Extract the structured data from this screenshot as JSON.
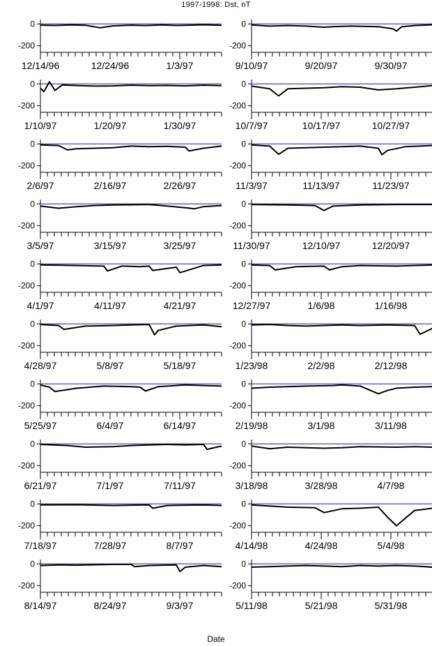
{
  "figure": {
    "title": "1997-1998: Dst, nT",
    "xlabel": "Date",
    "series_color": "#000000",
    "zero_line_color": "#1a1a8c"
  },
  "chart_data": [
    {
      "type": "line",
      "ylabel": "",
      "yticks": [
        0,
        -200
      ],
      "ylim": [
        -260,
        40
      ],
      "date_labels": [
        "12/14/96",
        "12/24/96",
        "1/3/97"
      ],
      "x": [
        0,
        0.08,
        0.17,
        0.25,
        0.33,
        0.4,
        0.5,
        0.58,
        0.67,
        0.75,
        0.82,
        0.9,
        1
      ],
      "y": [
        -12,
        -14,
        -10,
        -13,
        -35,
        -18,
        -12,
        -15,
        -10,
        -14,
        -12,
        -8,
        -13
      ]
    },
    {
      "type": "line",
      "ylabel": "",
      "yticks": [
        0,
        -200
      ],
      "ylim": [
        -260,
        40
      ],
      "date_labels": [
        "1/10/97",
        "1/20/97",
        "1/30/97"
      ],
      "x": [
        0,
        0.02,
        0.05,
        0.08,
        0.12,
        0.2,
        0.3,
        0.4,
        0.5,
        0.6,
        0.7,
        0.8,
        0.9,
        1
      ],
      "y": [
        -40,
        -70,
        20,
        -60,
        -10,
        -15,
        -20,
        -18,
        -12,
        -16,
        -14,
        -18,
        -12,
        -16
      ]
    },
    {
      "type": "line",
      "ylabel": "",
      "yticks": [
        0,
        -200
      ],
      "ylim": [
        -260,
        40
      ],
      "date_labels": [
        "2/6/97",
        "2/16/97",
        "2/26/97"
      ],
      "x": [
        0,
        0.1,
        0.15,
        0.2,
        0.3,
        0.4,
        0.5,
        0.6,
        0.7,
        0.8,
        0.82,
        0.9,
        1
      ],
      "y": [
        -10,
        -15,
        -55,
        -45,
        -40,
        -35,
        -20,
        -25,
        -22,
        -30,
        -65,
        -40,
        -20
      ]
    },
    {
      "type": "line",
      "ylabel": "",
      "yticks": [
        0,
        -200
      ],
      "ylim": [
        -260,
        40
      ],
      "date_labels": [
        "3/5/97",
        "3/15/97",
        "3/25/97"
      ],
      "x": [
        0,
        0.1,
        0.2,
        0.3,
        0.4,
        0.5,
        0.6,
        0.7,
        0.8,
        0.85,
        0.9,
        1
      ],
      "y": [
        -20,
        -40,
        -25,
        -15,
        -10,
        -8,
        -5,
        -20,
        -35,
        -45,
        -25,
        -15
      ]
    },
    {
      "type": "line",
      "ylabel": "",
      "yticks": [
        0,
        -200
      ],
      "ylim": [
        -260,
        40
      ],
      "date_labels": [
        "4/1/97",
        "4/11/97",
        "4/21/97"
      ],
      "x": [
        0,
        0.1,
        0.2,
        0.35,
        0.37,
        0.45,
        0.55,
        0.6,
        0.62,
        0.75,
        0.77,
        0.9,
        1
      ],
      "y": [
        -10,
        -12,
        -15,
        -20,
        -65,
        -20,
        -25,
        -20,
        -60,
        -30,
        -80,
        -15,
        -10
      ]
    },
    {
      "type": "line",
      "ylabel": "",
      "yticks": [
        0,
        -200
      ],
      "ylim": [
        -260,
        40
      ],
      "date_labels": [
        "4/28/97",
        "5/8/97",
        "5/18/97"
      ],
      "x": [
        0,
        0.1,
        0.13,
        0.25,
        0.4,
        0.5,
        0.6,
        0.63,
        0.65,
        0.75,
        0.9,
        1
      ],
      "y": [
        -5,
        -15,
        -50,
        -20,
        -15,
        -10,
        -5,
        -100,
        -60,
        -20,
        -10,
        -25
      ]
    },
    {
      "type": "line",
      "ylabel": "",
      "yticks": [
        0,
        -200
      ],
      "ylim": [
        -260,
        40
      ],
      "date_labels": [
        "5/25/97",
        "6/4/97",
        "6/14/97"
      ],
      "x": [
        0,
        0.05,
        0.08,
        0.2,
        0.35,
        0.5,
        0.55,
        0.58,
        0.65,
        0.8,
        0.9,
        1
      ],
      "y": [
        -10,
        -30,
        -70,
        -40,
        -20,
        -25,
        -30,
        -65,
        -25,
        -10,
        -15,
        -20
      ]
    },
    {
      "type": "line",
      "ylabel": "",
      "yticks": [
        0,
        -200
      ],
      "ylim": [
        -260,
        40
      ],
      "date_labels": [
        "6/21/97",
        "7/1/97",
        "7/11/97"
      ],
      "x": [
        0,
        0.15,
        0.25,
        0.4,
        0.5,
        0.6,
        0.7,
        0.8,
        0.9,
        0.92,
        1
      ],
      "y": [
        -5,
        -15,
        -30,
        -25,
        -15,
        -10,
        -5,
        -10,
        -5,
        -50,
        -20
      ]
    },
    {
      "type": "line",
      "ylabel": "",
      "yticks": [
        0,
        -200
      ],
      "ylim": [
        -260,
        40
      ],
      "date_labels": [
        "7/18/97",
        "7/28/97",
        "8/7/97"
      ],
      "x": [
        0,
        0.2,
        0.4,
        0.5,
        0.6,
        0.62,
        0.7,
        0.8,
        0.9,
        1
      ],
      "y": [
        -10,
        -8,
        -15,
        -12,
        -10,
        -40,
        -15,
        -12,
        -10,
        -15
      ]
    },
    {
      "type": "line",
      "ylabel": "",
      "yticks": [
        0,
        -200
      ],
      "ylim": [
        -260,
        40
      ],
      "date_labels": [
        "8/14/97",
        "8/24/97",
        "9/3/97"
      ],
      "x": [
        0,
        0.1,
        0.2,
        0.3,
        0.4,
        0.5,
        0.52,
        0.6,
        0.75,
        0.77,
        0.8,
        0.9,
        1
      ],
      "y": [
        -15,
        -10,
        -12,
        -8,
        -5,
        -5,
        -25,
        -15,
        -10,
        -70,
        -30,
        -15,
        -25
      ]
    },
    {
      "type": "line",
      "ylabel": "",
      "yticks": [
        0,
        -200
      ],
      "ylim": [
        -260,
        40
      ],
      "date_labels": [
        "9/10/97",
        "9/20/97",
        "9/30/97"
      ],
      "x": [
        0,
        0.1,
        0.2,
        0.3,
        0.4,
        0.45,
        0.55,
        0.7,
        0.78,
        0.8,
        0.83,
        0.9,
        1
      ],
      "y": [
        -10,
        -20,
        -15,
        -20,
        -30,
        -25,
        -20,
        -25,
        -45,
        -65,
        -25,
        -15,
        -8
      ]
    },
    {
      "type": "line",
      "ylabel": "",
      "yticks": [
        0,
        -200
      ],
      "ylim": [
        -260,
        40
      ],
      "date_labels": [
        "10/7/97",
        "10/17/97",
        "10/27/97"
      ],
      "x": [
        0,
        0.1,
        0.15,
        0.2,
        0.3,
        0.4,
        0.5,
        0.6,
        0.7,
        0.8,
        0.9,
        1
      ],
      "y": [
        -20,
        -45,
        -110,
        -45,
        -40,
        -35,
        -25,
        -30,
        -55,
        -45,
        -30,
        -15
      ]
    },
    {
      "type": "line",
      "ylabel": "",
      "yticks": [
        0,
        -200
      ],
      "ylim": [
        -260,
        40
      ],
      "date_labels": [
        "11/3/97",
        "11/13/97",
        "11/23/97"
      ],
      "x": [
        0,
        0.1,
        0.15,
        0.2,
        0.3,
        0.4,
        0.5,
        0.6,
        0.7,
        0.72,
        0.75,
        0.85,
        1
      ],
      "y": [
        -10,
        -20,
        -95,
        -40,
        -35,
        -30,
        -25,
        -20,
        -40,
        -100,
        -60,
        -25,
        -15
      ]
    },
    {
      "type": "line",
      "ylabel": "",
      "yticks": [
        0,
        -200
      ],
      "ylim": [
        -260,
        40
      ],
      "date_labels": [
        "11/30/97",
        "12/10/97",
        "12/20/97"
      ],
      "x": [
        0,
        0.2,
        0.35,
        0.4,
        0.45,
        0.6,
        0.8,
        1
      ],
      "y": [
        -5,
        -10,
        -15,
        -60,
        -20,
        -10,
        -5,
        -5
      ]
    },
    {
      "type": "line",
      "ylabel": "",
      "yticks": [
        0,
        -200
      ],
      "ylim": [
        -260,
        40
      ],
      "date_labels": [
        "12/27/97",
        "1/6/98",
        "1/16/98"
      ],
      "x": [
        0,
        0.1,
        0.13,
        0.25,
        0.4,
        0.43,
        0.5,
        0.6,
        0.8,
        1
      ],
      "y": [
        -10,
        -15,
        -55,
        -25,
        -20,
        -55,
        -25,
        -15,
        -20,
        -10
      ]
    },
    {
      "type": "line",
      "ylabel": "",
      "yticks": [
        0,
        -200
      ],
      "ylim": [
        -260,
        40
      ],
      "date_labels": [
        "1/23/98",
        "2/2/98",
        "2/12/98"
      ],
      "x": [
        0,
        0.1,
        0.2,
        0.3,
        0.5,
        0.6,
        0.75,
        0.9,
        0.93,
        1
      ],
      "y": [
        -10,
        -5,
        -15,
        -20,
        -10,
        -15,
        -10,
        -15,
        -95,
        -40
      ]
    },
    {
      "type": "line",
      "ylabel": "",
      "yticks": [
        0,
        -200
      ],
      "ylim": [
        -260,
        40
      ],
      "date_labels": [
        "2/19/98",
        "3/1/98",
        "3/11/98"
      ],
      "x": [
        0,
        0.1,
        0.2,
        0.3,
        0.45,
        0.5,
        0.6,
        0.7,
        0.75,
        0.8,
        0.9,
        1
      ],
      "y": [
        -40,
        -30,
        -25,
        -20,
        -15,
        -10,
        -20,
        -90,
        -60,
        -40,
        -30,
        -25
      ]
    },
    {
      "type": "line",
      "ylabel": "",
      "yticks": [
        0,
        -200
      ],
      "ylim": [
        -260,
        40
      ],
      "date_labels": [
        "3/18/98",
        "3/28/98",
        "4/7/98"
      ],
      "x": [
        0,
        0.1,
        0.2,
        0.3,
        0.4,
        0.5,
        0.6,
        0.8,
        0.9,
        1
      ],
      "y": [
        -20,
        -45,
        -30,
        -35,
        -40,
        -35,
        -25,
        -30,
        -25,
        -30
      ]
    },
    {
      "type": "line",
      "ylabel": "",
      "yticks": [
        0,
        -200
      ],
      "ylim": [
        -260,
        40
      ],
      "date_labels": [
        "4/14/98",
        "4/24/98",
        "5/4/98"
      ],
      "x": [
        0,
        0.1,
        0.2,
        0.35,
        0.4,
        0.5,
        0.6,
        0.7,
        0.75,
        0.8,
        0.9,
        1
      ],
      "y": [
        -10,
        -20,
        -30,
        -35,
        -80,
        -45,
        -40,
        -30,
        -120,
        -200,
        -60,
        -40
      ]
    },
    {
      "type": "line",
      "ylabel": "",
      "yticks": [
        0,
        -200
      ],
      "ylim": [
        -260,
        40
      ],
      "date_labels": [
        "5/11/98",
        "5/21/98",
        "5/31/98"
      ],
      "x": [
        0,
        0.1,
        0.2,
        0.3,
        0.4,
        0.5,
        0.6,
        0.7,
        0.8,
        0.9,
        1
      ],
      "y": [
        -30,
        -25,
        -20,
        -15,
        -20,
        -25,
        -15,
        -20,
        -15,
        -20,
        -30
      ]
    }
  ]
}
